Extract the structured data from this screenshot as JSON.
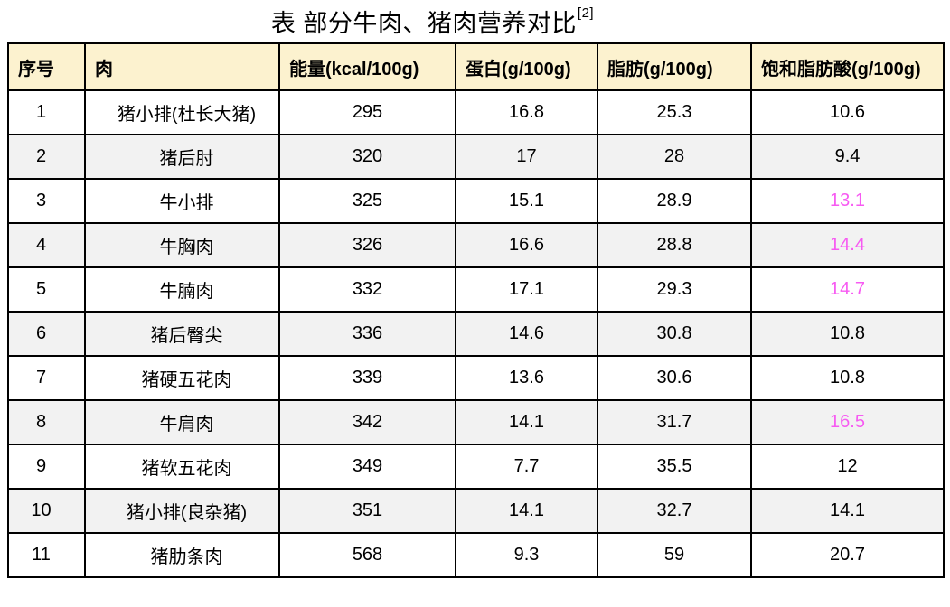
{
  "title": {
    "text": "表 部分牛肉、猪肉营养对比",
    "citation": "[2]"
  },
  "colors": {
    "header_bg": "#FCF2CF",
    "alt_row_bg": "#F2F2F2",
    "border": "#000000",
    "highlight": "#F75AF2"
  },
  "chart_data": {
    "type": "table",
    "title": "表 部分牛肉、猪肉营养对比[2]",
    "columns": [
      "序号",
      "肉",
      "能量(kcal/100g)",
      "蛋白(g/100g)",
      "脂肪(g/100g)",
      "饱和脂肪酸(g/100g)"
    ],
    "rows": [
      {
        "no": "1",
        "meat": "猪小排(杜长大猪)",
        "energy": "295",
        "protein": "16.8",
        "fat": "25.3",
        "sat_fat": "10.6",
        "sat_fat_highlighted": false
      },
      {
        "no": "2",
        "meat": "猪后肘",
        "energy": "320",
        "protein": "17",
        "fat": "28",
        "sat_fat": "9.4",
        "sat_fat_highlighted": false
      },
      {
        "no": "3",
        "meat": "牛小排",
        "energy": "325",
        "protein": "15.1",
        "fat": "28.9",
        "sat_fat": "13.1",
        "sat_fat_highlighted": true
      },
      {
        "no": "4",
        "meat": "牛胸肉",
        "energy": "326",
        "protein": "16.6",
        "fat": "28.8",
        "sat_fat": "14.4",
        "sat_fat_highlighted": true
      },
      {
        "no": "5",
        "meat": "牛腩肉",
        "energy": "332",
        "protein": "17.1",
        "fat": "29.3",
        "sat_fat": "14.7",
        "sat_fat_highlighted": true
      },
      {
        "no": "6",
        "meat": "猪后臀尖",
        "energy": "336",
        "protein": "14.6",
        "fat": "30.8",
        "sat_fat": "10.8",
        "sat_fat_highlighted": false
      },
      {
        "no": "7",
        "meat": "猪硬五花肉",
        "energy": "339",
        "protein": "13.6",
        "fat": "30.6",
        "sat_fat": "10.8",
        "sat_fat_highlighted": false
      },
      {
        "no": "8",
        "meat": "牛肩肉",
        "energy": "342",
        "protein": "14.1",
        "fat": "31.7",
        "sat_fat": "16.5",
        "sat_fat_highlighted": true
      },
      {
        "no": "9",
        "meat": "猪软五花肉",
        "energy": "349",
        "protein": "7.7",
        "fat": "35.5",
        "sat_fat": "12",
        "sat_fat_highlighted": false
      },
      {
        "no": "10",
        "meat": "猪小排(良杂猪)",
        "energy": "351",
        "protein": "14.1",
        "fat": "32.7",
        "sat_fat": "14.1",
        "sat_fat_highlighted": false
      },
      {
        "no": "11",
        "meat": "猪肋条肉",
        "energy": "568",
        "protein": "9.3",
        "fat": "59",
        "sat_fat": "20.7",
        "sat_fat_highlighted": false
      }
    ]
  }
}
